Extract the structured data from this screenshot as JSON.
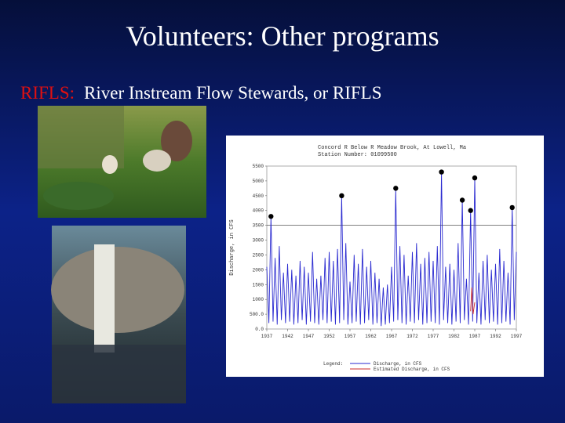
{
  "header": {
    "title": "Volunteers: Other programs"
  },
  "subtitle": {
    "label": "RIFLS:",
    "text": "River Instream Flow Stewards, or RIFLS"
  },
  "chart_data": {
    "type": "line",
    "title": "Concord R Below R Meadow Brook, At Lowell, Ma",
    "subtitle": "Station Number: 01099500",
    "y_label": "Discharge, in CFS",
    "legend_title": "Legend:",
    "xlim": [
      1937,
      1997
    ],
    "ylim": [
      0,
      5500
    ],
    "xticks": [
      1937,
      1942,
      1947,
      1952,
      1957,
      1962,
      1967,
      1972,
      1977,
      1982,
      1987,
      1992,
      1997
    ],
    "yticks": [
      {
        "value": 0,
        "label": "0.0"
      },
      {
        "value": 500,
        "label": "500.0"
      },
      1000,
      1500,
      2000,
      2500,
      3000,
      3500,
      4000,
      4500,
      5000,
      5500
    ],
    "hline": 3500,
    "series": [
      {
        "name": "Discharge, in CFS",
        "color": "#2a2ad0",
        "kind": "line",
        "x": [
          1937,
          1937.5,
          1938,
          1938.5,
          1939,
          1939.5,
          1940,
          1940.5,
          1941,
          1941.5,
          1942,
          1942.5,
          1943,
          1943.5,
          1944,
          1944.5,
          1945,
          1945.5,
          1946,
          1946.5,
          1947,
          1947.5,
          1948,
          1948.5,
          1949,
          1949.5,
          1950,
          1950.5,
          1951,
          1951.5,
          1952,
          1952.5,
          1953,
          1953.5,
          1954,
          1954.5,
          1955,
          1955.5,
          1956,
          1956.5,
          1957,
          1957.5,
          1958,
          1958.5,
          1959,
          1959.5,
          1960,
          1960.5,
          1961,
          1961.5,
          1962,
          1962.5,
          1963,
          1963.5,
          1964,
          1964.5,
          1965,
          1965.5,
          1966,
          1966.5,
          1967,
          1967.5,
          1968,
          1968.5,
          1969,
          1969.5,
          1970,
          1970.5,
          1971,
          1971.5,
          1972,
          1972.5,
          1973,
          1973.5,
          1974,
          1974.5,
          1975,
          1975.5,
          1976,
          1976.5,
          1977,
          1977.5,
          1978,
          1978.5,
          1979,
          1979.5,
          1980,
          1980.5,
          1981,
          1981.5,
          1982,
          1982.5,
          1983,
          1983.5,
          1984,
          1984.5,
          1985,
          1985.5,
          1986,
          1986.5,
          1987,
          1987.5,
          1988,
          1988.5,
          1989,
          1989.5,
          1990,
          1990.5,
          1991,
          1991.5,
          1992,
          1992.5,
          1993,
          1993.5,
          1994,
          1994.5,
          1995,
          1995.5,
          1996,
          1996.5,
          1997
        ],
        "values": [
          2100,
          200,
          3800,
          250,
          2400,
          150,
          2800,
          300,
          1900,
          200,
          2200,
          250,
          2000,
          150,
          1800,
          200,
          2300,
          300,
          2100,
          150,
          1900,
          250,
          2600,
          200,
          1700,
          150,
          1800,
          300,
          2400,
          200,
          2600,
          250,
          2300,
          150,
          2700,
          200,
          4500,
          300,
          2900,
          150,
          1600,
          200,
          2500,
          250,
          2200,
          150,
          2700,
          200,
          2100,
          300,
          2300,
          150,
          1900,
          200,
          1700,
          100,
          1400,
          150,
          1500,
          200,
          2100,
          250,
          4750,
          300,
          2800,
          200,
          2500,
          150,
          1800,
          250,
          2600,
          200,
          2900,
          300,
          2200,
          150,
          2400,
          200,
          2600,
          250,
          2300,
          200,
          2800,
          150,
          5300,
          300,
          2100,
          200,
          2200,
          150,
          2000,
          250,
          2900,
          200,
          4350,
          300,
          1700,
          150,
          4000,
          250,
          5100,
          200,
          1900,
          150,
          2300,
          300,
          2500,
          200,
          2000,
          250,
          2200,
          150,
          2700,
          200,
          2300,
          250,
          1900,
          150,
          4100,
          300,
          2600
        ]
      },
      {
        "name": "Estimated Discharge, in CFS",
        "color": "#cc2a2a",
        "kind": "line",
        "x": [
          1986,
          1986.3,
          1986.6,
          1987
        ],
        "values": [
          600,
          1400,
          500,
          900
        ]
      },
      {
        "color": "#000000",
        "kind": "scatter",
        "x": [
          1938,
          1955,
          1968,
          1979,
          1984,
          1986,
          1987,
          1996
        ],
        "values": [
          3800,
          4500,
          4750,
          5300,
          4350,
          4000,
          5100,
          4100
        ]
      }
    ]
  }
}
